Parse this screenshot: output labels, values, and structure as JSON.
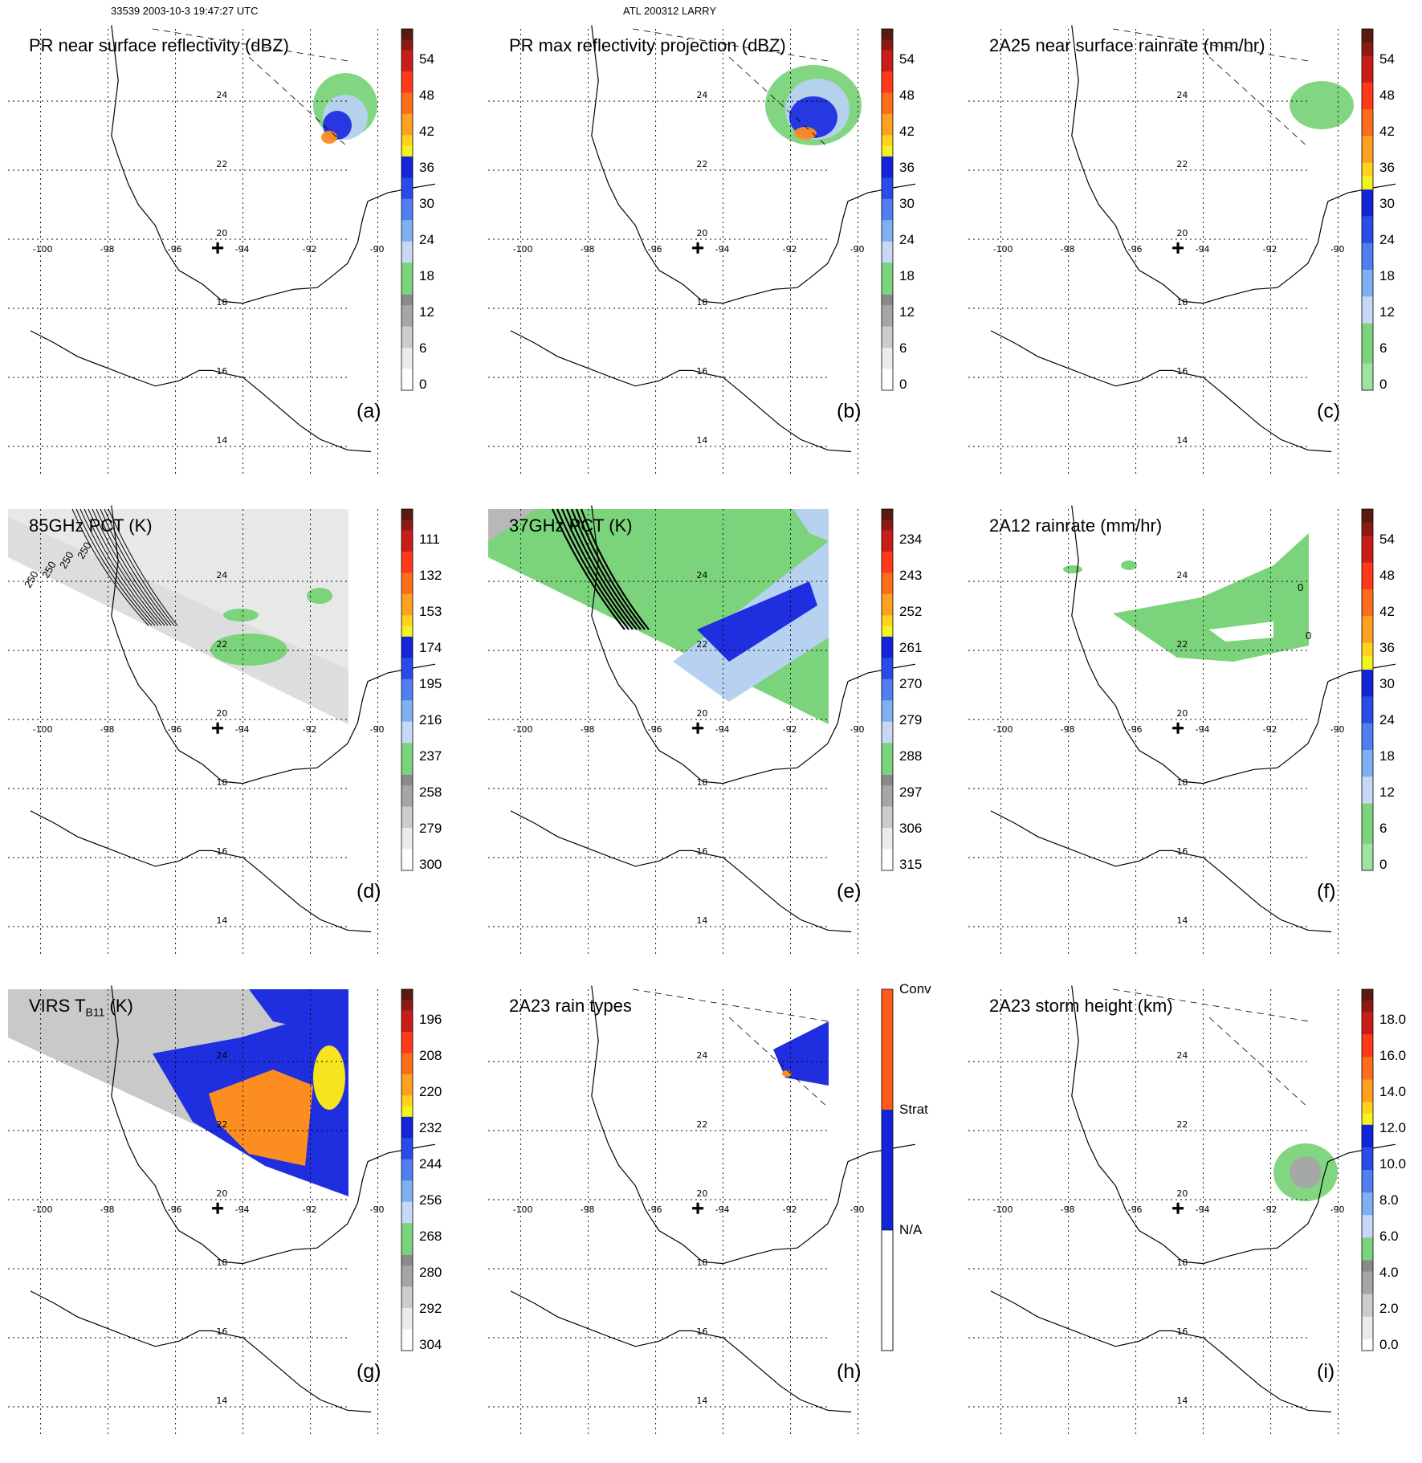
{
  "header": {
    "left": "33539 2003-10-3 19:47:27 UTC",
    "center": "ATL 200312 LARRY"
  },
  "map_labels": {
    "lons": [
      "-100",
      "-98",
      "-96",
      "-94",
      "-92",
      "-90"
    ],
    "lats": [
      "24",
      "22",
      "20",
      "18",
      "16",
      "14"
    ]
  },
  "colors": {
    "green": "#7bd47b",
    "light_blue": "#b7d1f1",
    "blue": "#1f2fe0",
    "yellow": "#f6e51e",
    "orange": "#fb8d21",
    "red": "#d32617",
    "gray": "#a6a6a6"
  },
  "panels": [
    {
      "id": "a",
      "title": "PR near surface reflectivity (dBZ)",
      "letter": "(a)",
      "colorbar_ticks": [
        "54",
        "48",
        "42",
        "36",
        "30",
        "24",
        "18",
        "12",
        "6",
        "0"
      ],
      "colorbar_style": "standard"
    },
    {
      "id": "b",
      "title": "PR max reflectivity projection (dBZ)",
      "letter": "(b)",
      "colorbar_ticks": [
        "54",
        "48",
        "42",
        "36",
        "30",
        "24",
        "18",
        "12",
        "6",
        "0"
      ],
      "colorbar_style": "standard"
    },
    {
      "id": "c",
      "title": "2A25 near surface rainrate (mm/hr)",
      "letter": "(c)",
      "colorbar_ticks": [
        "54",
        "48",
        "42",
        "36",
        "30",
        "24",
        "18",
        "12",
        "6",
        "0"
      ],
      "colorbar_style": "rain"
    },
    {
      "id": "d",
      "title": "85GHz PCT (K)",
      "letter": "(d)",
      "colorbar_ticks": [
        "111",
        "132",
        "153",
        "174",
        "195",
        "216",
        "237",
        "258",
        "279",
        "300"
      ],
      "colorbar_style": "standard",
      "contour_labels": [
        "250",
        "250",
        "250",
        "250"
      ]
    },
    {
      "id": "e",
      "title": "37GHz PCT (K)",
      "letter": "(e)",
      "colorbar_ticks": [
        "234",
        "243",
        "252",
        "261",
        "270",
        "279",
        "288",
        "297",
        "306",
        "315"
      ],
      "colorbar_style": "standard"
    },
    {
      "id": "f",
      "title": "2A12 rainrate (mm/hr)",
      "letter": "(f)",
      "colorbar_ticks": [
        "54",
        "48",
        "42",
        "36",
        "30",
        "24",
        "18",
        "12",
        "6",
        "0"
      ],
      "colorbar_style": "rain",
      "contour_labels": [
        "0",
        "0"
      ]
    },
    {
      "id": "g",
      "title": "VIRS T",
      "title_sub": "B11",
      "title_suffix": " (K)",
      "letter": "(g)",
      "colorbar_ticks": [
        "196",
        "208",
        "220",
        "232",
        "244",
        "256",
        "268",
        "280",
        "292",
        "304"
      ],
      "colorbar_style": "standard"
    },
    {
      "id": "h",
      "title": "2A23 rain types",
      "letter": "(h)",
      "colorbar_ticks": [
        "Conv",
        "Strat",
        "N/A"
      ],
      "colorbar_style": "types"
    },
    {
      "id": "i",
      "title": "2A23 storm height (km)",
      "letter": "(i)",
      "colorbar_ticks": [
        "18.0",
        "16.0",
        "14.0",
        "12.0",
        "10.0",
        "8.0",
        "6.0",
        "4.0",
        "2.0",
        "0.0"
      ],
      "colorbar_style": "height"
    }
  ]
}
